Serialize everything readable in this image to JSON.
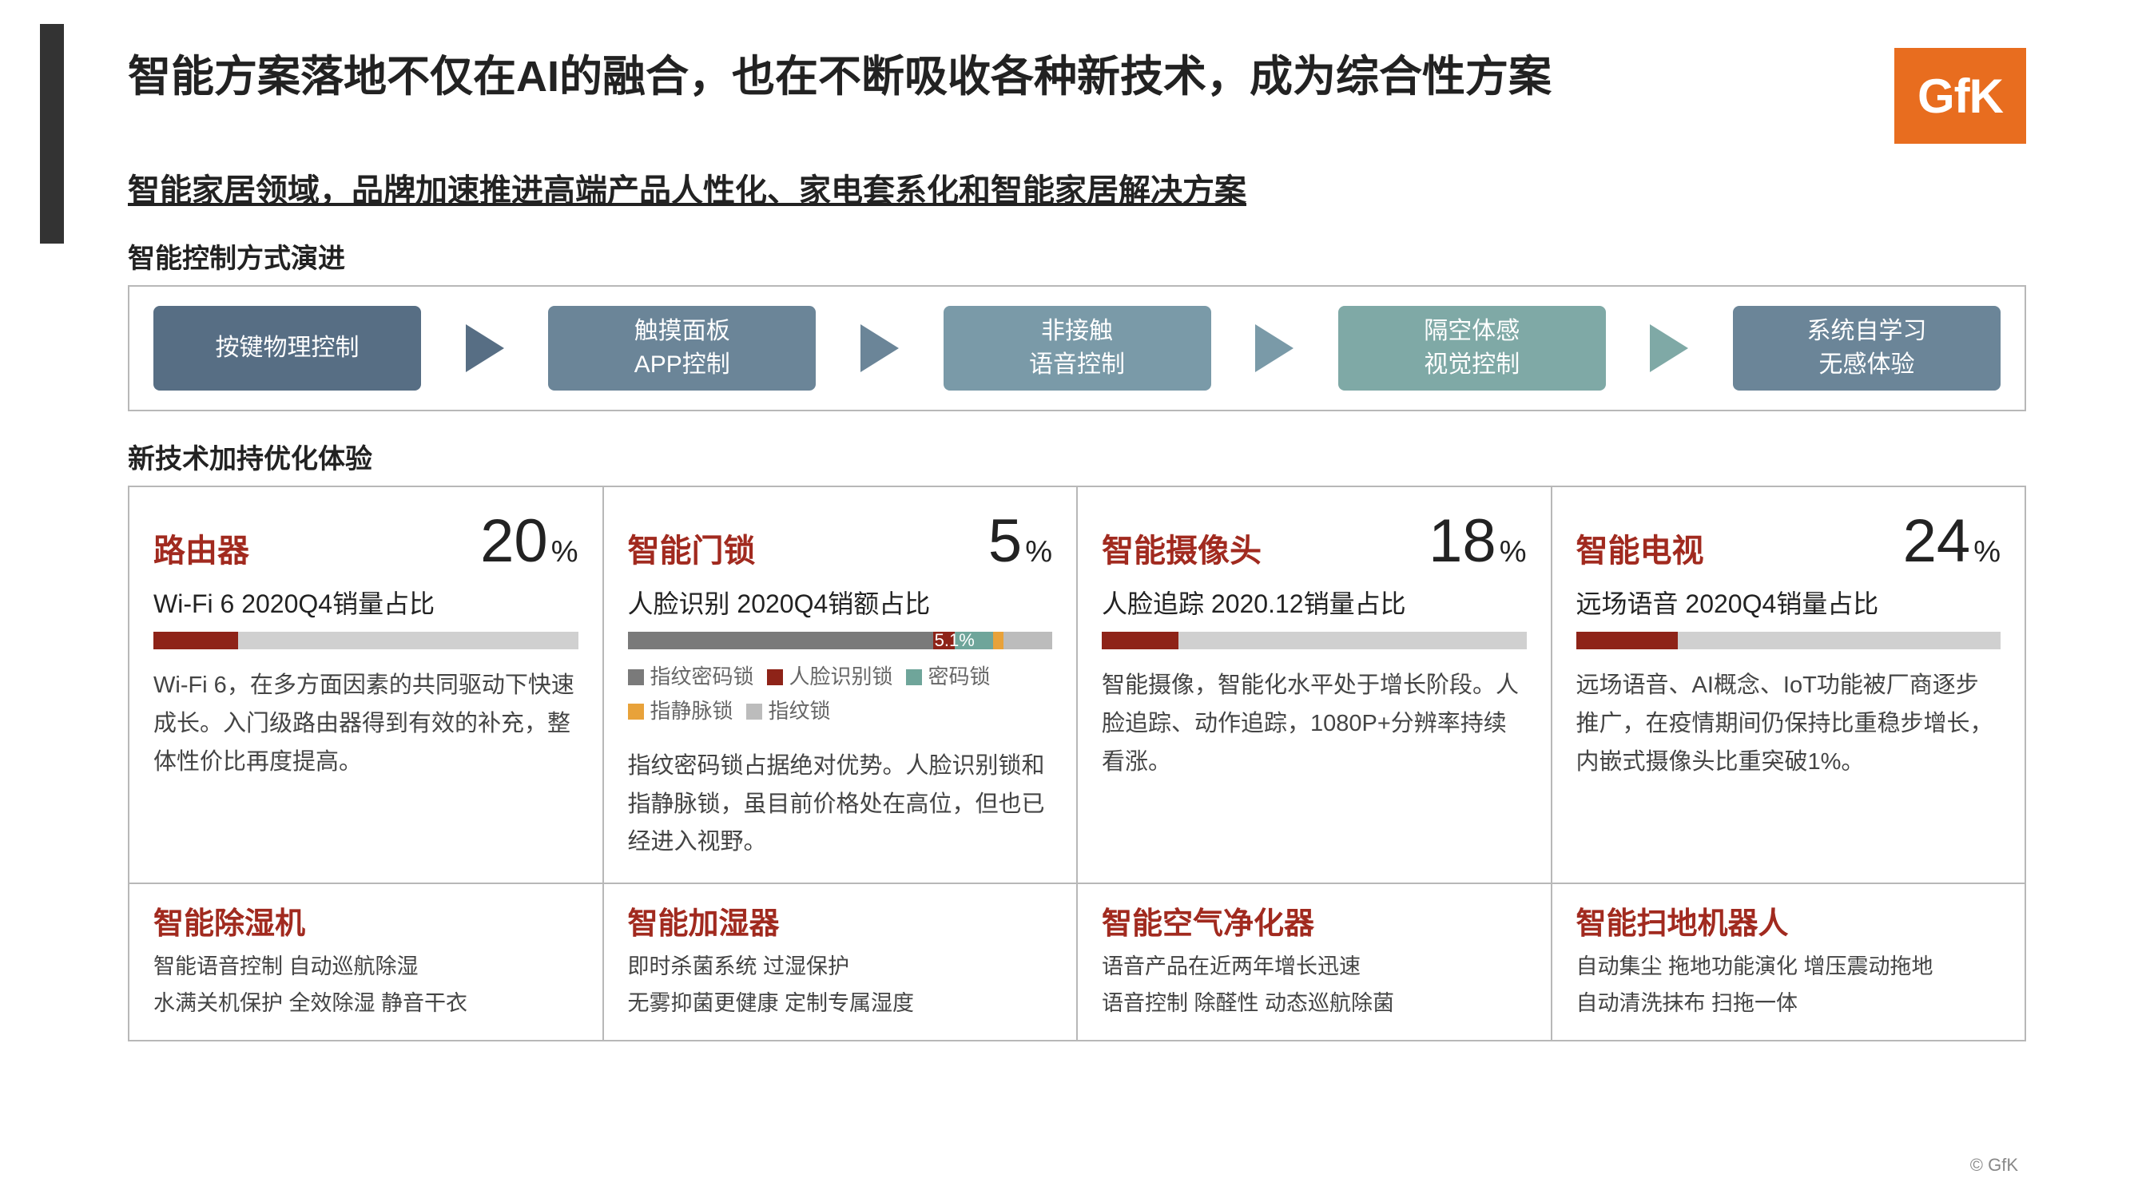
{
  "colors": {
    "accent_red": "#a12a1f",
    "logo_bg": "#e86d1f",
    "left_bar": "#333333",
    "box_border": "#b8b8b8",
    "bar_bg": "#d0d0d0"
  },
  "logo_text": "GfK",
  "title": "智能方案落地不仅在AI的融合，也在不断吸收各种新技术，成为综合性方案",
  "subtitle": "智能家居领域，品牌加速推进高端产品人性化、家电套系化和智能家居解决方案",
  "copyright": "© GfK",
  "evolution": {
    "label": "智能控制方式演进",
    "steps": [
      {
        "lines": [
          "按键物理控制"
        ],
        "bg": "#576e84"
      },
      {
        "lines": [
          "触摸面板",
          "APP控制"
        ],
        "bg": "#6b8598"
      },
      {
        "lines": [
          "非接触",
          "语音控制"
        ],
        "bg": "#7a9aa8"
      },
      {
        "lines": [
          "隔空体感",
          "视觉控制"
        ],
        "bg": "#7fa9a6"
      },
      {
        "lines": [
          "系统自学习",
          "无感体验"
        ],
        "bg": "#6b8598"
      }
    ],
    "arrow_colors": [
      "#576e84",
      "#6b8598",
      "#7a9aa8",
      "#7fa9a6"
    ]
  },
  "tech": {
    "label": "新技术加持优化体验",
    "cards": [
      {
        "title": "路由器",
        "pct": "20",
        "metric": "Wi-Fi 6 2020Q4销量占比",
        "bar": {
          "segments": [
            {
              "color": "#8e2318",
              "w": 20
            }
          ]
        },
        "desc": "Wi-Fi 6，在多方面因素的共同驱动下快速成长。入门级路由器得到有效的补充，整体性价比再度提高。"
      },
      {
        "title": "智能门锁",
        "pct": "5",
        "metric": "人脸识别 2020Q4销额占比",
        "bar": {
          "segments": [
            {
              "color": "#7a7a7a",
              "w": 72
            },
            {
              "color": "#8e2318",
              "w": 5.1
            },
            {
              "color": "#6fa59a",
              "w": 9
            },
            {
              "color": "#e8a23a",
              "w": 2.5
            },
            {
              "color": "#bcbcbc",
              "w": 11.4
            }
          ],
          "overlay": {
            "text": "5.1%",
            "left_pct": 72,
            "width_pct": 10,
            "bg": "#8e2318"
          }
        },
        "legend": [
          {
            "color": "#7a7a7a",
            "label": "指纹密码锁"
          },
          {
            "color": "#8e2318",
            "label": "人脸识别锁"
          },
          {
            "color": "#6fa59a",
            "label": "密码锁"
          },
          {
            "color": "#e8a23a",
            "label": "指静脉锁"
          },
          {
            "color": "#bcbcbc",
            "label": "指纹锁"
          }
        ],
        "desc": "指纹密码锁占据绝对优势。人脸识别锁和指静脉锁，虽目前价格处在高位，但也已经进入视野。"
      },
      {
        "title": "智能摄像头",
        "pct": "18",
        "metric": "人脸追踪 2020.12销量占比",
        "bar": {
          "segments": [
            {
              "color": "#8e2318",
              "w": 18
            }
          ]
        },
        "desc": "智能摄像，智能化水平处于增长阶段。人脸追踪、动作追踪，1080P+分辨率持续看涨。"
      },
      {
        "title": "智能电视",
        "pct": "24",
        "metric": "远场语音 2020Q4销量占比",
        "bar": {
          "segments": [
            {
              "color": "#8e2318",
              "w": 24
            }
          ]
        },
        "desc": "远场语音、AI概念、IoT功能被厂商逐步推广，在疫情期间仍保持比重稳步增长，内嵌式摄像头比重突破1%。"
      }
    ],
    "bottom": [
      {
        "title": "智能除湿机",
        "desc": "智能语音控制 自动巡航除湿\n水满关机保护 全效除湿 静音干衣"
      },
      {
        "title": "智能加湿器",
        "desc": "即时杀菌系统 过湿保护\n无雾抑菌更健康 定制专属湿度"
      },
      {
        "title": "智能空气净化器",
        "desc": "语音产品在近两年增长迅速\n语音控制 除醛性 动态巡航除菌"
      },
      {
        "title": "智能扫地机器人",
        "desc": "自动集尘 拖地功能演化 增压震动拖地\n自动清洗抹布 扫拖一体"
      }
    ]
  }
}
